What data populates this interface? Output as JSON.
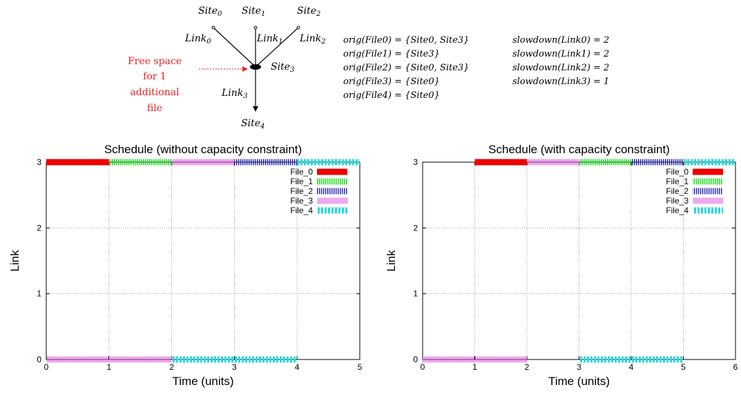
{
  "topology": {
    "sites": [
      "Site",
      "Site",
      "Site",
      "Site",
      "Site"
    ],
    "site_subscripts": [
      "0",
      "1",
      "2",
      "3",
      "4"
    ],
    "links": [
      "Link",
      "Link",
      "Link",
      "Link"
    ],
    "link_subscripts": [
      "0",
      "1",
      "2",
      "3"
    ],
    "free_space_note": [
      "Free space",
      "for 1",
      "additional",
      "file"
    ]
  },
  "origins": [
    "orig(File0) = {Site0, Site3}",
    "orig(File1) = {Site3}",
    "orig(File2) = {Site0, Site3}",
    "orig(File3) = {Site0}",
    "orig(File4) = {Site0}"
  ],
  "slowdowns": [
    "slowdown(Link0) = 2",
    "slowdown(Link1) = 2",
    "slowdown(Link2) = 2",
    "slowdown(Link3) = 1"
  ],
  "colors": {
    "File_0": "#ee0000",
    "File_1": "#22dd22",
    "File_2": "#1a1aaa",
    "File_3": "#dd55dd",
    "File_4": "#22dddd",
    "annotation": "#ee2222",
    "grid": "#888888",
    "axis": "#000000"
  },
  "chart_data": [
    {
      "type": "gantt",
      "title": "Schedule (without capacity constraint)",
      "xlabel": "Time (units)",
      "ylabel": "Link",
      "xlim": [
        0,
        5
      ],
      "ylim": [
        0,
        3
      ],
      "xticks": [
        "0",
        "1",
        "2",
        "3",
        "4",
        "5"
      ],
      "yticks": [
        "0",
        "1",
        "2",
        "3"
      ],
      "grid": true,
      "legend_position": "top-right",
      "legend": [
        "File_0",
        "File_1",
        "File_2",
        "File_3",
        "File_4"
      ],
      "bars": [
        {
          "file": "File_0",
          "link": 3,
          "start": 0,
          "end": 1
        },
        {
          "file": "File_1",
          "link": 3,
          "start": 1,
          "end": 2
        },
        {
          "file": "File_3",
          "link": 3,
          "start": 2,
          "end": 3
        },
        {
          "file": "File_2",
          "link": 3,
          "start": 3,
          "end": 4
        },
        {
          "file": "File_4",
          "link": 3,
          "start": 4,
          "end": 5
        },
        {
          "file": "File_3",
          "link": 0,
          "start": 0,
          "end": 2
        },
        {
          "file": "File_4",
          "link": 0,
          "start": 2,
          "end": 4
        }
      ]
    },
    {
      "type": "gantt",
      "title": "Schedule (with capacity constraint)",
      "xlabel": "Time (units)",
      "ylabel": "Link",
      "xlim": [
        0,
        6
      ],
      "ylim": [
        0,
        3
      ],
      "xticks": [
        "0",
        "1",
        "2",
        "3",
        "4",
        "5",
        "6"
      ],
      "yticks": [
        "0",
        "1",
        "2",
        "3"
      ],
      "grid": true,
      "legend_position": "top-right",
      "legend": [
        "File_0",
        "File_1",
        "File_2",
        "File_3",
        "File_4"
      ],
      "bars": [
        {
          "file": "File_0",
          "link": 3,
          "start": 1,
          "end": 2
        },
        {
          "file": "File_3",
          "link": 3,
          "start": 2,
          "end": 3
        },
        {
          "file": "File_1",
          "link": 3,
          "start": 3,
          "end": 4
        },
        {
          "file": "File_2",
          "link": 3,
          "start": 4,
          "end": 5
        },
        {
          "file": "File_4",
          "link": 3,
          "start": 5,
          "end": 6
        },
        {
          "file": "File_3",
          "link": 0,
          "start": 0,
          "end": 2
        },
        {
          "file": "File_4",
          "link": 0,
          "start": 3,
          "end": 5
        }
      ]
    }
  ]
}
